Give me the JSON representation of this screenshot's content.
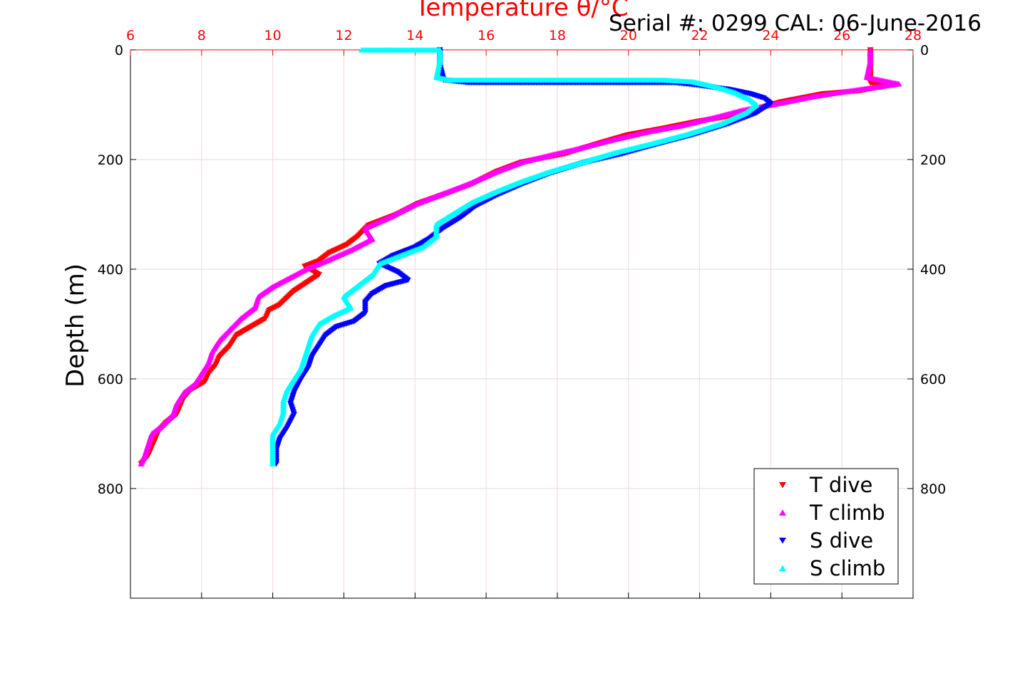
{
  "chart_data": {
    "type": "scatter",
    "title": "",
    "xlabel": "Temperature θ/°C",
    "ylabel": "Depth (m)",
    "serial_label": "Serial #: 0299 CAL: 06-June-2016",
    "xlim": [
      6,
      28
    ],
    "ylim": [
      1000,
      0
    ],
    "y_reversed": true,
    "x_axis_position": "top",
    "x_ticks": [
      6,
      8,
      10,
      12,
      14,
      16,
      18,
      20,
      22,
      24,
      26,
      28
    ],
    "y_ticks": [
      0,
      200,
      400,
      600,
      800
    ],
    "grid": true,
    "legend_position": "bottom-right",
    "series": [
      {
        "name": "T dive",
        "marker": "triangle-down",
        "color": "#ff0000",
        "points": [
          [
            26.8,
            0
          ],
          [
            26.8,
            30
          ],
          [
            26.8,
            60
          ],
          [
            27.3,
            65
          ],
          [
            26.5,
            75
          ],
          [
            25.5,
            80
          ],
          [
            24.3,
            95
          ],
          [
            23.0,
            120
          ],
          [
            22.0,
            130
          ],
          [
            21.0,
            143
          ],
          [
            20.0,
            155
          ],
          [
            19.2,
            170
          ],
          [
            18.2,
            190
          ],
          [
            17.0,
            205
          ],
          [
            16.3,
            222
          ],
          [
            15.6,
            245
          ],
          [
            14.9,
            262
          ],
          [
            14.1,
            280
          ],
          [
            13.5,
            300
          ],
          [
            12.7,
            320
          ],
          [
            12.4,
            340
          ],
          [
            12.1,
            355
          ],
          [
            11.6,
            370
          ],
          [
            11.3,
            385
          ],
          [
            10.9,
            395
          ],
          [
            11.3,
            410
          ],
          [
            10.6,
            440
          ],
          [
            10.2,
            465
          ],
          [
            9.9,
            475
          ],
          [
            9.8,
            490
          ],
          [
            9.4,
            505
          ],
          [
            9.0,
            520
          ],
          [
            8.8,
            540
          ],
          [
            8.5,
            560
          ],
          [
            8.4,
            575
          ],
          [
            8.2,
            590
          ],
          [
            8.1,
            605
          ],
          [
            7.7,
            620
          ],
          [
            7.5,
            635
          ],
          [
            7.4,
            650
          ],
          [
            7.3,
            665
          ],
          [
            7.0,
            680
          ],
          [
            6.8,
            695
          ],
          [
            6.7,
            710
          ],
          [
            6.6,
            725
          ],
          [
            6.5,
            740
          ],
          [
            6.3,
            755
          ]
        ]
      },
      {
        "name": "T climb",
        "marker": "triangle-up",
        "color": "#ff00ff",
        "points": [
          [
            26.8,
            0
          ],
          [
            26.8,
            20
          ],
          [
            26.7,
            50
          ],
          [
            27.6,
            62
          ],
          [
            26.2,
            75
          ],
          [
            25.2,
            85
          ],
          [
            24.2,
            98
          ],
          [
            23.2,
            110
          ],
          [
            22.5,
            122
          ],
          [
            21.5,
            138
          ],
          [
            20.5,
            150
          ],
          [
            19.5,
            165
          ],
          [
            18.6,
            180
          ],
          [
            17.8,
            192
          ],
          [
            17.0,
            205
          ],
          [
            16.3,
            222
          ],
          [
            15.6,
            242
          ],
          [
            14.8,
            262
          ],
          [
            14.0,
            282
          ],
          [
            13.3,
            305
          ],
          [
            12.6,
            325
          ],
          [
            12.8,
            345
          ],
          [
            12.2,
            365
          ],
          [
            11.5,
            385
          ],
          [
            11.0,
            398
          ],
          [
            10.5,
            415
          ],
          [
            10.0,
            432
          ],
          [
            9.6,
            450
          ],
          [
            9.5,
            470
          ],
          [
            9.1,
            490
          ],
          [
            8.8,
            510
          ],
          [
            8.5,
            530
          ],
          [
            8.3,
            550
          ],
          [
            8.2,
            570
          ],
          [
            8.0,
            590
          ],
          [
            7.8,
            610
          ],
          [
            7.5,
            625
          ],
          [
            7.3,
            645
          ],
          [
            7.2,
            665
          ],
          [
            6.9,
            685
          ],
          [
            6.6,
            700
          ],
          [
            6.5,
            720
          ],
          [
            6.4,
            740
          ],
          [
            6.3,
            755
          ]
        ]
      },
      {
        "name": "S dive",
        "marker": "triangle-down",
        "color": "#0000ff",
        "points": [
          [
            14.7,
            0
          ],
          [
            14.7,
            30
          ],
          [
            14.8,
            55
          ],
          [
            15.5,
            60
          ],
          [
            17.9,
            60
          ],
          [
            21.3,
            60
          ],
          [
            22.0,
            65
          ],
          [
            22.8,
            72
          ],
          [
            23.4,
            80
          ],
          [
            23.8,
            88
          ],
          [
            24.0,
            98
          ],
          [
            23.6,
            115
          ],
          [
            22.8,
            135
          ],
          [
            21.8,
            155
          ],
          [
            20.8,
            172
          ],
          [
            19.8,
            190
          ],
          [
            18.8,
            205
          ],
          [
            17.8,
            225
          ],
          [
            17.0,
            245
          ],
          [
            16.3,
            265
          ],
          [
            15.7,
            285
          ],
          [
            15.3,
            305
          ],
          [
            14.8,
            325
          ],
          [
            14.4,
            345
          ],
          [
            14.0,
            360
          ],
          [
            13.4,
            375
          ],
          [
            13.0,
            390
          ],
          [
            13.5,
            405
          ],
          [
            13.8,
            420
          ],
          [
            13.2,
            430
          ],
          [
            12.8,
            445
          ],
          [
            12.6,
            460
          ],
          [
            12.6,
            480
          ],
          [
            12.3,
            495
          ],
          [
            11.8,
            505
          ],
          [
            11.5,
            520
          ],
          [
            11.3,
            540
          ],
          [
            11.1,
            560
          ],
          [
            11.0,
            580
          ],
          [
            10.8,
            600
          ],
          [
            10.6,
            625
          ],
          [
            10.5,
            645
          ],
          [
            10.6,
            665
          ],
          [
            10.4,
            690
          ],
          [
            10.2,
            710
          ],
          [
            10.1,
            730
          ],
          [
            10.1,
            755
          ]
        ]
      },
      {
        "name": "S climb",
        "marker": "triangle-up",
        "color": "#00ffff",
        "points": [
          [
            12.5,
            0
          ],
          [
            14.7,
            0
          ],
          [
            14.7,
            20
          ],
          [
            14.6,
            50
          ],
          [
            15.0,
            55
          ],
          [
            18.7,
            55
          ],
          [
            20.4,
            55
          ],
          [
            21.0,
            55
          ],
          [
            21.8,
            58
          ],
          [
            22.5,
            68
          ],
          [
            23.0,
            78
          ],
          [
            23.4,
            90
          ],
          [
            23.6,
            100
          ],
          [
            23.3,
            115
          ],
          [
            22.6,
            135
          ],
          [
            21.6,
            155
          ],
          [
            20.6,
            172
          ],
          [
            19.6,
            188
          ],
          [
            18.7,
            205
          ],
          [
            17.8,
            222
          ],
          [
            17.0,
            240
          ],
          [
            16.3,
            258
          ],
          [
            15.6,
            278
          ],
          [
            15.1,
            298
          ],
          [
            14.6,
            318
          ],
          [
            14.6,
            340
          ],
          [
            14.2,
            360
          ],
          [
            13.6,
            375
          ],
          [
            13.0,
            390
          ],
          [
            12.8,
            410
          ],
          [
            12.4,
            430
          ],
          [
            12.0,
            450
          ],
          [
            12.2,
            470
          ],
          [
            11.7,
            485
          ],
          [
            11.3,
            500
          ],
          [
            11.1,
            520
          ],
          [
            11.0,
            540
          ],
          [
            10.9,
            560
          ],
          [
            10.8,
            580
          ],
          [
            10.6,
            600
          ],
          [
            10.4,
            620
          ],
          [
            10.3,
            640
          ],
          [
            10.3,
            660
          ],
          [
            10.2,
            680
          ],
          [
            10.0,
            700
          ],
          [
            10.0,
            720
          ],
          [
            10.0,
            740
          ],
          [
            10.0,
            755
          ]
        ]
      }
    ]
  }
}
